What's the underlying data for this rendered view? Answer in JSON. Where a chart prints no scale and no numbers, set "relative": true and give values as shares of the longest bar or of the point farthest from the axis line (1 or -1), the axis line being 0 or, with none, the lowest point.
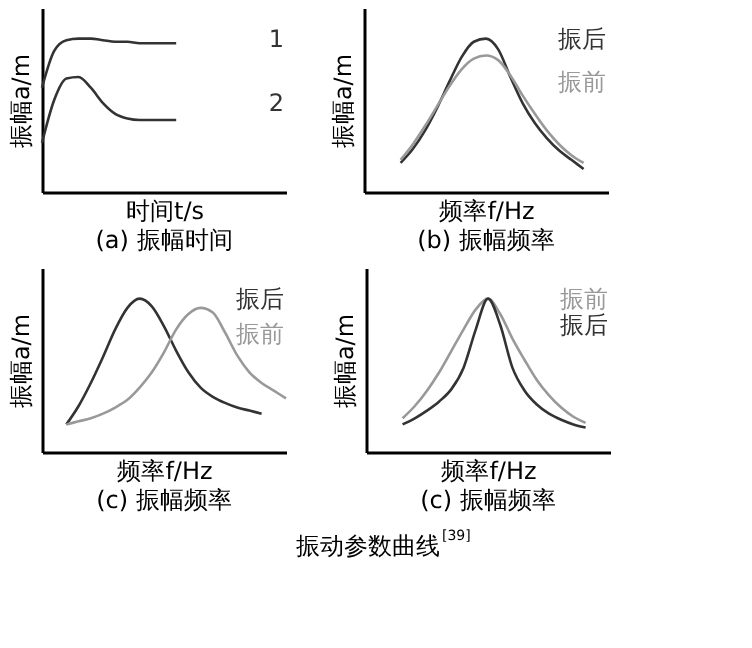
{
  "chart_data": [
    {
      "type": "line",
      "title": "(a) 振幅时间",
      "xlabel": "时间t/s",
      "ylabel": "振幅a/m",
      "relative": true,
      "tick_labels": false,
      "categories": [
        null,
        null,
        null,
        null,
        null,
        null,
        null,
        null,
        null,
        null,
        null,
        null,
        null,
        null,
        null,
        null,
        null,
        null,
        null,
        null,
        null
      ],
      "series": [
        {
          "name": "1",
          "color": "#333333",
          "values": [
            0.68,
            0.92,
            0.99,
            1,
            1,
            0.99,
            0.98,
            0.98,
            0.97,
            0.97,
            0.97,
            0.97,
            null,
            null,
            null,
            null,
            null,
            null,
            null,
            null,
            null
          ]
        },
        {
          "name": "2",
          "color": "#333333",
          "values": [
            0.32,
            0.6,
            0.74,
            0.75,
            0.68,
            0.58,
            0.51,
            0.48,
            0.47,
            0.47,
            0.47,
            0.47,
            null,
            null,
            null,
            null,
            null,
            null,
            null,
            null,
            null
          ]
        }
      ]
    },
    {
      "type": "line",
      "title": "(b) 振幅频率",
      "xlabel": "频率f/Hz",
      "ylabel": "振幅a/m",
      "relative": true,
      "tick_labels": false,
      "categories": [
        null,
        null,
        null,
        null,
        null,
        null,
        null,
        null,
        null,
        null,
        null,
        null,
        null,
        null,
        null,
        null,
        null,
        null,
        null,
        null,
        null
      ],
      "series": [
        {
          "name": "振后",
          "color": "#333333",
          "values": [
            null,
            null,
            null,
            0.19,
            0.28,
            0.4,
            0.55,
            0.72,
            0.88,
            0.98,
            1.0,
            0.93,
            0.75,
            0.58,
            0.45,
            0.35,
            0.27,
            0.21,
            0.15,
            null,
            null
          ]
        },
        {
          "name": "振前",
          "color": "#999999",
          "values": [
            null,
            null,
            null,
            0.21,
            0.31,
            0.43,
            0.56,
            0.69,
            0.8,
            0.87,
            0.89,
            0.86,
            0.76,
            0.63,
            0.51,
            0.4,
            0.31,
            0.24,
            0.19,
            null,
            null
          ]
        }
      ]
    },
    {
      "type": "line",
      "title": "(c) 振幅频率",
      "xlabel": "频率f/Hz",
      "ylabel": "振幅a/m",
      "relative": true,
      "tick_labels": false,
      "categories": [
        null,
        null,
        null,
        null,
        null,
        null,
        null,
        null,
        null,
        null,
        null,
        null,
        null,
        null,
        null,
        null,
        null,
        null,
        null,
        null,
        null
      ],
      "series": [
        {
          "name": "振后",
          "color": "#333333",
          "values": [
            null,
            null,
            0.18,
            0.3,
            0.45,
            0.62,
            0.8,
            0.94,
            1.0,
            0.95,
            0.82,
            0.66,
            0.52,
            0.42,
            0.36,
            0.32,
            0.29,
            0.27,
            0.25,
            null,
            null
          ]
        },
        {
          "name": "振前",
          "color": "#999999",
          "values": [
            null,
            null,
            0.18,
            0.2,
            0.22,
            0.25,
            0.29,
            0.34,
            0.42,
            0.52,
            0.65,
            0.8,
            0.9,
            0.94,
            0.91,
            0.78,
            0.63,
            0.52,
            0.45,
            0.4,
            0.35
          ]
        }
      ]
    },
    {
      "type": "line",
      "title": "(c) 振幅频率",
      "xlabel": "频率f/Hz",
      "ylabel": "振幅a/m",
      "relative": true,
      "tick_labels": false,
      "annotations": [
        "振动参数曲线$^{[39]}$"
      ],
      "categories": [
        null,
        null,
        null,
        null,
        null,
        null,
        null,
        null,
        null,
        null,
        null,
        null,
        null,
        null,
        null,
        null,
        null,
        null,
        null,
        null,
        null
      ],
      "series": [
        {
          "name": "振前",
          "color": "#999999",
          "values": [
            null,
            null,
            null,
            0.22,
            0.3,
            0.4,
            0.52,
            0.66,
            0.8,
            0.93,
            1.0,
            0.9,
            0.74,
            0.6,
            0.47,
            0.37,
            0.29,
            0.23,
            0.19,
            null,
            null
          ]
        },
        {
          "name": "振后",
          "color": "#333333",
          "values": [
            null,
            null,
            null,
            0.18,
            0.22,
            0.27,
            0.33,
            0.41,
            0.55,
            0.8,
            1.0,
            0.83,
            0.55,
            0.4,
            0.31,
            0.25,
            0.21,
            0.18,
            0.16,
            null,
            null
          ]
        }
      ]
    }
  ]
}
